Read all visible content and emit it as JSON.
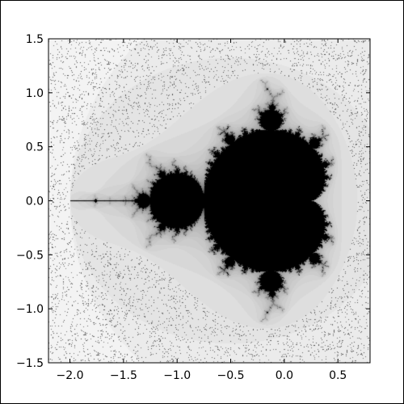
{
  "chart_data": {
    "type": "heatmap",
    "title": "",
    "xlabel": "",
    "ylabel": "",
    "xlim": [
      -2.2,
      0.8
    ],
    "ylim": [
      -1.5,
      1.5
    ],
    "x_ticks": [
      {
        "value": -2.0,
        "label": "−2.0"
      },
      {
        "value": -1.5,
        "label": "−1.5"
      },
      {
        "value": -1.0,
        "label": "−1.0"
      },
      {
        "value": -0.5,
        "label": "−0.5"
      },
      {
        "value": 0.0,
        "label": "0.0"
      },
      {
        "value": 0.5,
        "label": "0.5"
      }
    ],
    "y_ticks": [
      {
        "value": 1.5,
        "label": "1.5"
      },
      {
        "value": 1.0,
        "label": "1.0"
      },
      {
        "value": 0.5,
        "label": "0.5"
      },
      {
        "value": 0.0,
        "label": "0.0"
      },
      {
        "value": -0.5,
        "label": "−0.5"
      },
      {
        "value": -1.0,
        "label": "−1.0"
      },
      {
        "value": -1.5,
        "label": "−1.5"
      }
    ],
    "colormap": "greyscale",
    "colors": {
      "inside_set": "#000000",
      "background": "#ffffff",
      "noise": "#555555"
    },
    "grid": false,
    "subject": "Mandelbrot set"
  }
}
